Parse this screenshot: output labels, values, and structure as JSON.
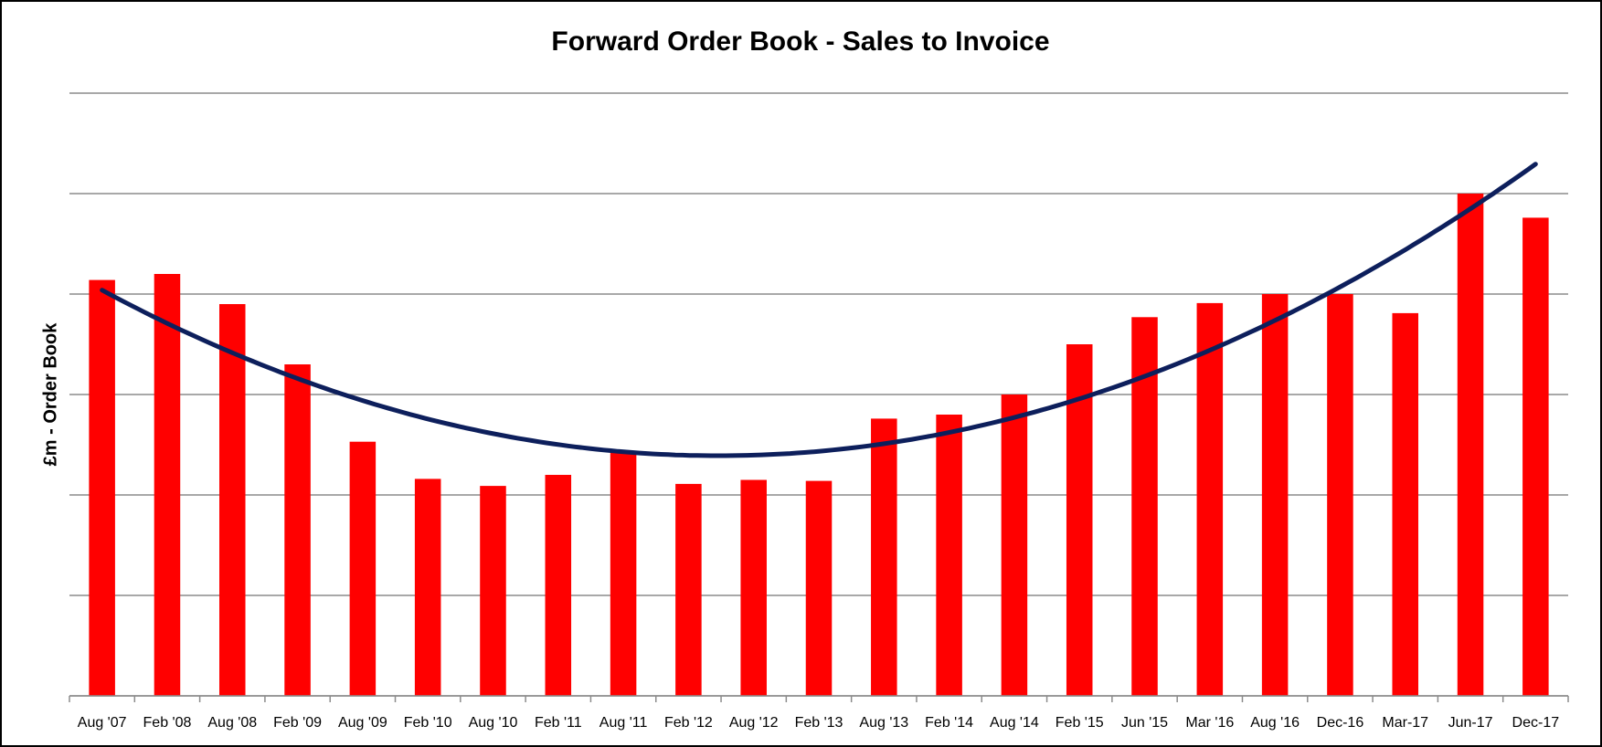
{
  "chart_data": {
    "type": "bar",
    "title": "Forward Order Book - Sales to Invoice",
    "ylabel": "£m - Order Book",
    "categories": [
      "Aug '07",
      "Feb '08",
      "Aug '08",
      "Feb '09",
      "Aug '09",
      "Feb '10",
      "Aug '10",
      "Feb '11",
      "Aug '11",
      "Feb '12",
      "Aug '12",
      "Feb '13",
      "Aug '13",
      "Feb '14",
      "Aug '14",
      "Feb '15",
      "Jun '15",
      "Mar '16",
      "Aug '16",
      "Dec-16",
      "Mar-17",
      "Jun-17",
      "Dec-17"
    ],
    "values": [
      4.14,
      4.2,
      3.9,
      3.3,
      2.53,
      2.16,
      2.09,
      2.2,
      2.43,
      2.11,
      2.15,
      2.14,
      2.76,
      2.8,
      3.0,
      3.5,
      3.77,
      3.91,
      4.0,
      4.0,
      3.81,
      5.0,
      4.76
    ],
    "color": "#ff0000",
    "trendline": {
      "type": "polynomial",
      "order": 2,
      "color": "#0d1f5c"
    },
    "ylim": [
      0,
      6
    ],
    "yticks": [
      0,
      1,
      2,
      3,
      4,
      5,
      6
    ],
    "grid": true
  }
}
